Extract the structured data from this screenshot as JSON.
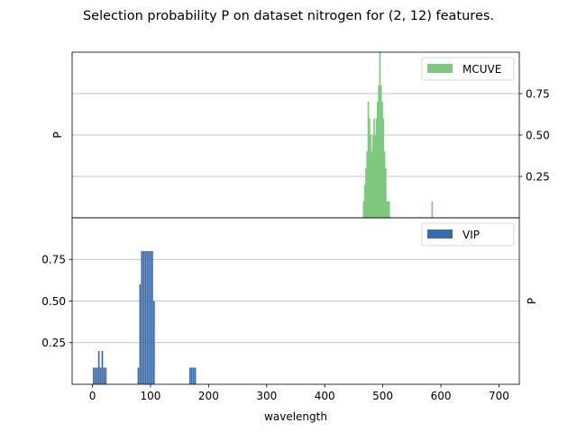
{
  "chart_data": {
    "type": "bar",
    "title": "Selection probability P on dataset nitrogen for (2, 12) features.",
    "xlabel": "wavelength",
    "xlim": [
      -35,
      735
    ],
    "xticks": [
      0,
      100,
      200,
      300,
      400,
      500,
      600,
      700
    ],
    "grid": "horizontal",
    "panels": [
      {
        "name": "top",
        "series_name": "MCUVE",
        "color": "#7fc97f",
        "ylabel": "P",
        "y_axis_side": "right",
        "ylim": [
          0.0,
          1.0
        ],
        "yticks": [
          0.25,
          0.5,
          0.75
        ],
        "legend": "upper right",
        "bar_width": 2.6,
        "bars": [
          {
            "x": 467,
            "y": 0.1
          },
          {
            "x": 469,
            "y": 0.2
          },
          {
            "x": 471,
            "y": 0.3
          },
          {
            "x": 473,
            "y": 0.4
          },
          {
            "x": 475,
            "y": 0.7
          },
          {
            "x": 477,
            "y": 0.6
          },
          {
            "x": 479,
            "y": 0.5
          },
          {
            "x": 481,
            "y": 0.4
          },
          {
            "x": 483,
            "y": 0.5
          },
          {
            "x": 485,
            "y": 0.6
          },
          {
            "x": 487,
            "y": 0.5
          },
          {
            "x": 489,
            "y": 0.6
          },
          {
            "x": 491,
            "y": 0.7
          },
          {
            "x": 493,
            "y": 0.8
          },
          {
            "x": 495,
            "y": 1.0
          },
          {
            "x": 497,
            "y": 0.8
          },
          {
            "x": 499,
            "y": 0.7
          },
          {
            "x": 501,
            "y": 0.6
          },
          {
            "x": 503,
            "y": 0.4
          },
          {
            "x": 505,
            "y": 0.3
          },
          {
            "x": 507,
            "y": 0.1
          },
          {
            "x": 509,
            "y": 0.1
          },
          {
            "x": 511,
            "y": 0.1
          },
          {
            "x": 585,
            "y": 0.1
          }
        ]
      },
      {
        "name": "bottom",
        "series_name": "VIP",
        "color": "#386cb0",
        "ylabel": "P",
        "y_axis_side": "left",
        "ylim": [
          0.0,
          1.0
        ],
        "yticks": [
          0.25,
          0.5,
          0.75
        ],
        "legend": "upper right",
        "bar_width": 2.6,
        "bars": [
          {
            "x": 2,
            "y": 0.1
          },
          {
            "x": 5,
            "y": 0.1
          },
          {
            "x": 8,
            "y": 0.1
          },
          {
            "x": 11,
            "y": 0.2
          },
          {
            "x": 14,
            "y": 0.1
          },
          {
            "x": 17,
            "y": 0.2
          },
          {
            "x": 20,
            "y": 0.1
          },
          {
            "x": 23,
            "y": 0.1
          },
          {
            "x": 79,
            "y": 0.1
          },
          {
            "x": 82,
            "y": 0.6
          },
          {
            "x": 85,
            "y": 0.8
          },
          {
            "x": 88,
            "y": 0.8
          },
          {
            "x": 91,
            "y": 0.8
          },
          {
            "x": 94,
            "y": 0.8
          },
          {
            "x": 97,
            "y": 0.8
          },
          {
            "x": 100,
            "y": 0.8
          },
          {
            "x": 103,
            "y": 0.8
          },
          {
            "x": 106,
            "y": 0.5
          },
          {
            "x": 168,
            "y": 0.1
          },
          {
            "x": 171,
            "y": 0.1
          },
          {
            "x": 174,
            "y": 0.1
          },
          {
            "x": 177,
            "y": 0.1
          }
        ]
      }
    ]
  }
}
